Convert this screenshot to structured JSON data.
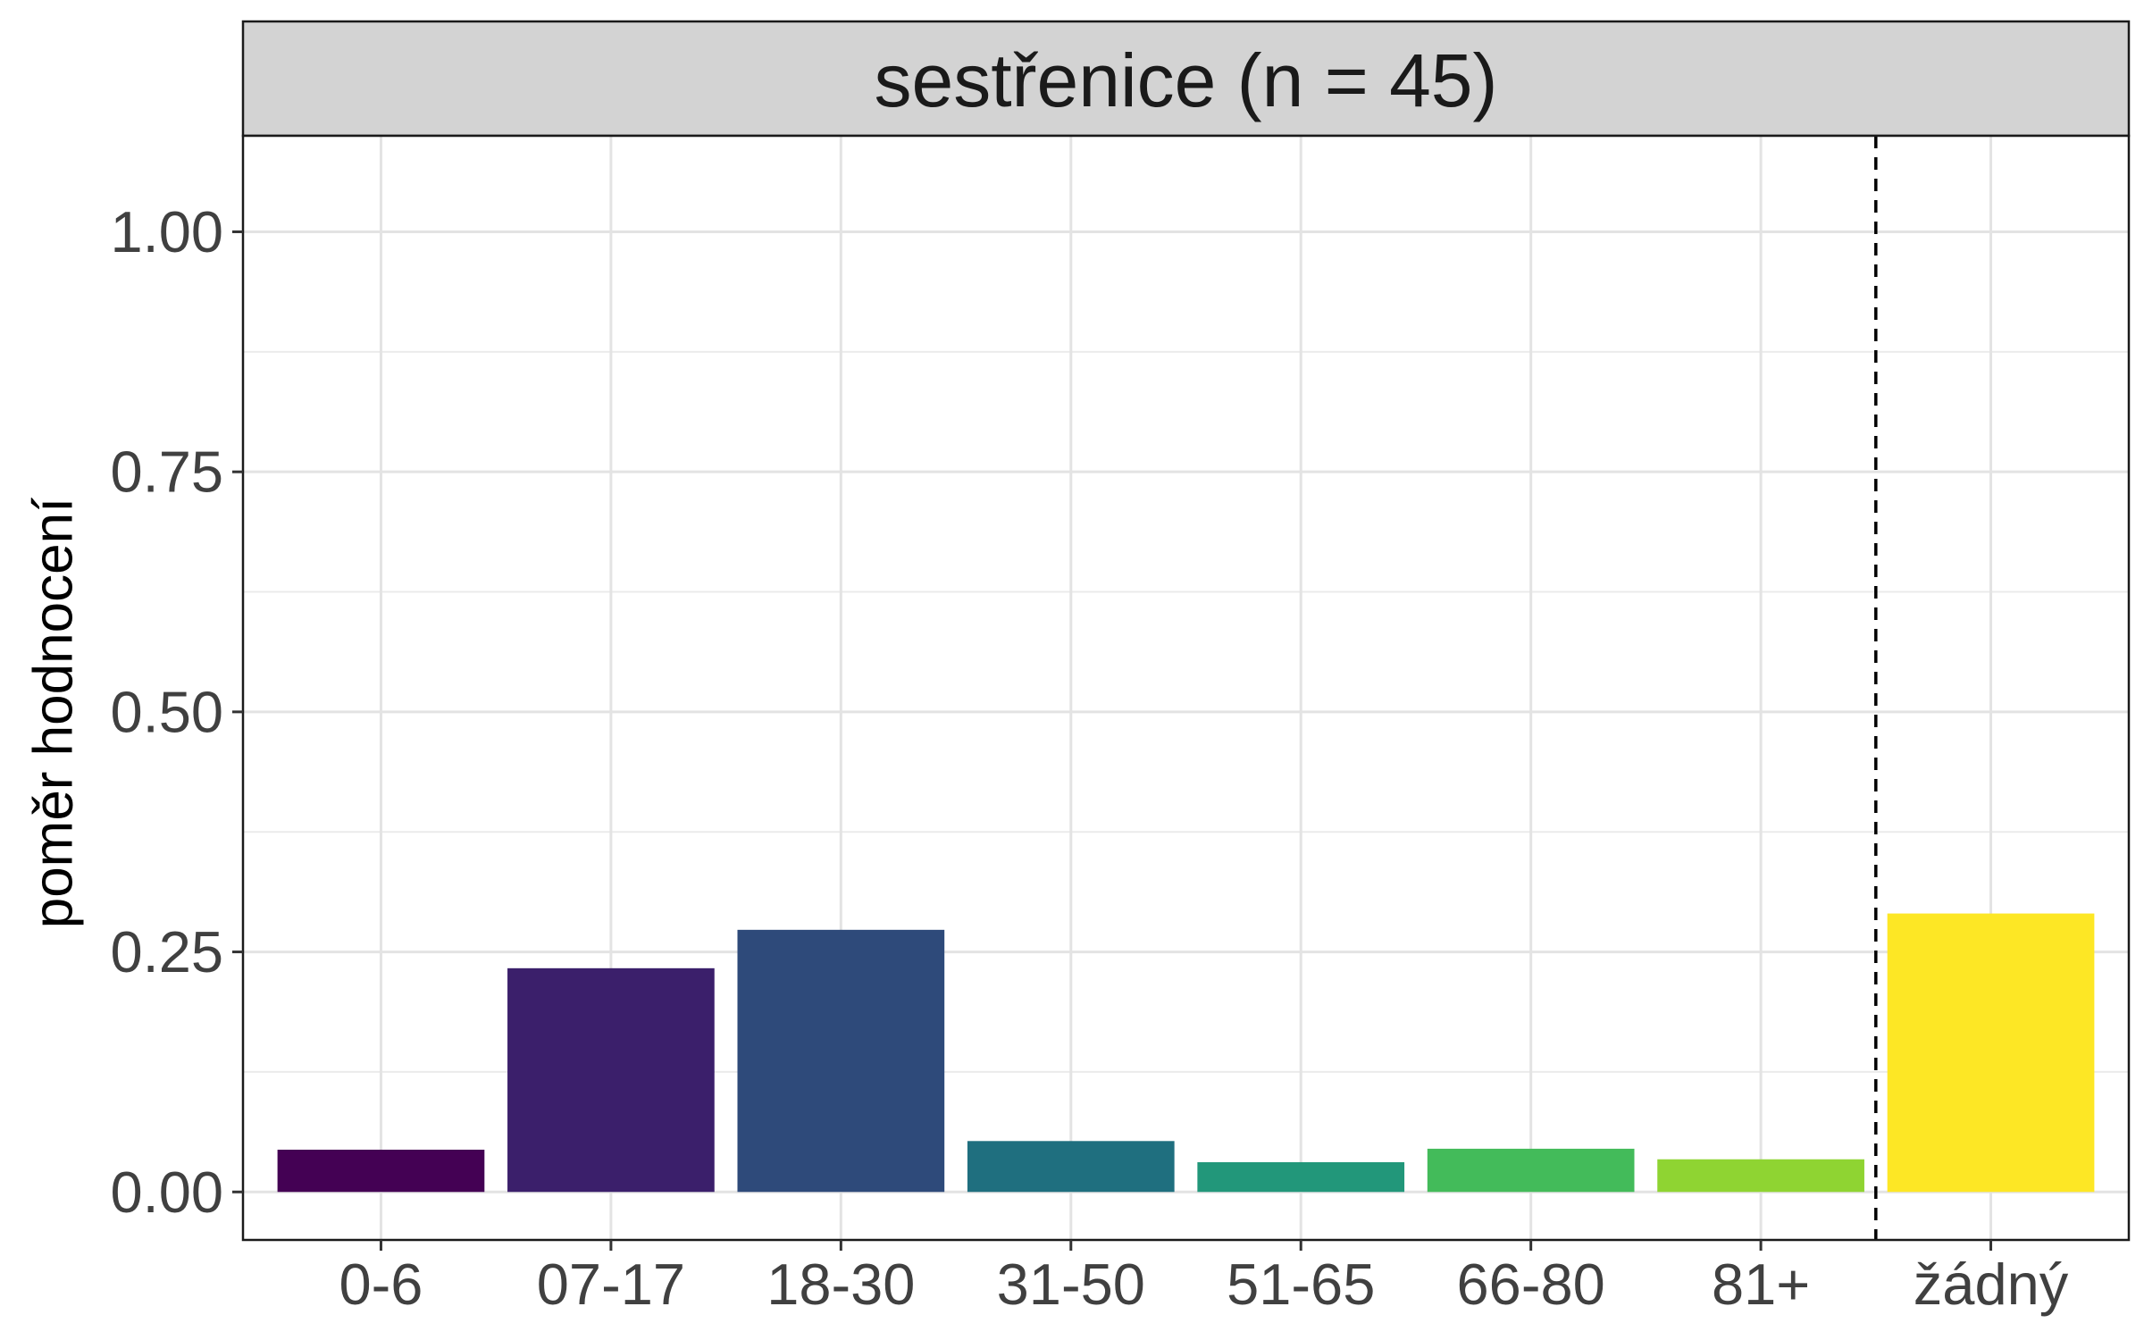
{
  "chart_data": {
    "type": "bar",
    "facet_title": "sestřenice (n = 45)",
    "xlabel": "",
    "ylabel": "poměr hodnocení",
    "categories": [
      "0-6",
      "07-17",
      "18-30",
      "31-50",
      "51-65",
      "66-80",
      "81+",
      "žádný"
    ],
    "values": [
      0.044,
      0.233,
      0.273,
      0.053,
      0.031,
      0.045,
      0.034,
      0.29
    ],
    "colors": [
      "#440154",
      "#3b1f6b",
      "#2e4a7a",
      "#1f6f7f",
      "#22977a",
      "#43bb5a",
      "#8fd432",
      "#fde725"
    ],
    "ylim": [
      -0.05,
      1.1
    ],
    "yticks": [
      "0.00",
      "0.25",
      "0.50",
      "0.75",
      "1.00"
    ],
    "ytick_values": [
      0,
      0.25,
      0.5,
      0.75,
      1.0
    ],
    "reference_line": {
      "between": [
        "81+",
        "žádný"
      ],
      "style": "dashed"
    },
    "grid": true,
    "legend": "none"
  }
}
